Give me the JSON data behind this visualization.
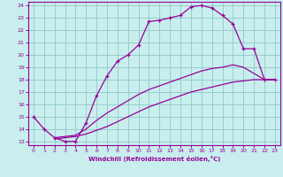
{
  "xlabel": "Windchill (Refroidissement éolien,°C)",
  "xlim": [
    -0.5,
    23.5
  ],
  "ylim": [
    12.7,
    24.3
  ],
  "xticks": [
    0,
    1,
    2,
    3,
    4,
    5,
    6,
    7,
    8,
    9,
    10,
    11,
    12,
    13,
    14,
    15,
    16,
    17,
    18,
    19,
    20,
    21,
    22,
    23
  ],
  "yticks": [
    13,
    14,
    15,
    16,
    17,
    18,
    19,
    20,
    21,
    22,
    23,
    24
  ],
  "bg_color": "#c8eeee",
  "line_color": "#990099",
  "grid_color": "#99cccc",
  "curve1_x": [
    0,
    1,
    2,
    3,
    4,
    5,
    6,
    7,
    8,
    9,
    10,
    11,
    12,
    13,
    14,
    15,
    16,
    17,
    18,
    19,
    20,
    21,
    22,
    23
  ],
  "curve1_y": [
    15.0,
    14.0,
    13.3,
    13.0,
    13.0,
    14.5,
    16.7,
    18.3,
    19.5,
    20.0,
    20.8,
    22.7,
    22.8,
    23.0,
    23.2,
    23.9,
    24.0,
    23.8,
    23.2,
    22.5,
    20.5,
    20.5,
    18.0,
    18.0
  ],
  "curve2_x": [
    2,
    3,
    4,
    5,
    6,
    7,
    8,
    9,
    10,
    11,
    12,
    13,
    14,
    15,
    16,
    17,
    18,
    19,
    20,
    21,
    22,
    23
  ],
  "curve2_y": [
    13.3,
    13.4,
    13.5,
    14.0,
    14.7,
    15.3,
    15.8,
    16.3,
    16.8,
    17.2,
    17.5,
    17.8,
    18.1,
    18.4,
    18.7,
    18.9,
    19.0,
    19.2,
    19.0,
    18.5,
    18.0,
    18.0
  ],
  "curve3_x": [
    2,
    3,
    4,
    5,
    6,
    7,
    8,
    9,
    10,
    11,
    12,
    13,
    14,
    15,
    16,
    17,
    18,
    19,
    20,
    21,
    22,
    23
  ],
  "curve3_y": [
    13.2,
    13.3,
    13.4,
    13.6,
    13.9,
    14.2,
    14.6,
    15.0,
    15.4,
    15.8,
    16.1,
    16.4,
    16.7,
    17.0,
    17.2,
    17.4,
    17.6,
    17.8,
    17.9,
    18.0,
    18.0,
    18.0
  ]
}
